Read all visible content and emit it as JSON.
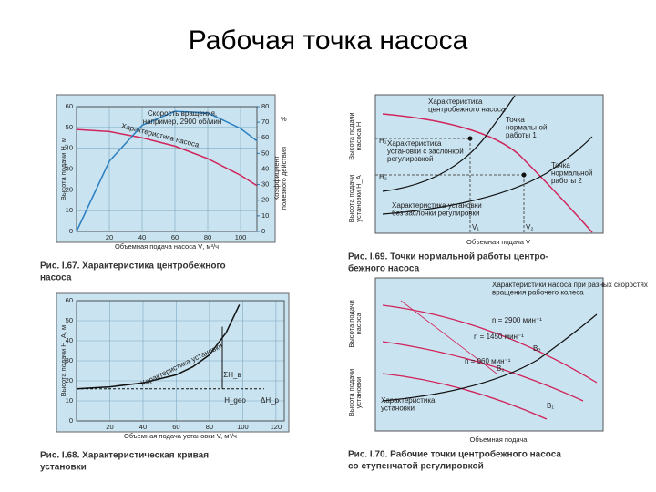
{
  "title": "Рабочая точка насоса",
  "chart_data": [
    {
      "type": "line",
      "x": [
        0,
        20,
        40,
        60,
        80,
        100,
        110
      ],
      "xlim": [
        0,
        110
      ],
      "xticks": [
        20,
        40,
        60,
        80,
        100
      ],
      "ylim": [
        0,
        60
      ],
      "yticks": [
        0,
        10,
        20,
        30,
        40,
        50,
        60
      ],
      "y2lim": [
        0,
        80
      ],
      "y2ticks": [
        0,
        10,
        20,
        30,
        40,
        50,
        60,
        70,
        80
      ],
      "grid": true,
      "xlabel": "Объемная подача насоса V̇, м³/ч",
      "ylabel": "Высота подачи H, м",
      "y2label": [
        "Коэффициент",
        "полезного действия"
      ],
      "y2unit": "%",
      "series": [
        {
          "name": "Характеристика насоса",
          "color": "#d0245a",
          "values": [
            49,
            48,
            45,
            41,
            35,
            27,
            22
          ]
        },
        {
          "color": "#2a7fc0",
          "axis": "y2",
          "values": [
            0,
            45,
            68,
            77,
            76,
            66,
            58
          ]
        }
      ],
      "annotations": [
        [
          "Скорость вращения,",
          "например, 2900 об/мин"
        ]
      ],
      "caption": [
        "Рис. I.67. Характеристика центробежного",
        "насоса"
      ]
    },
    {
      "type": "line",
      "x": [
        0,
        20,
        40,
        60,
        70,
        80,
        90,
        98
      ],
      "xlim": [
        0,
        125
      ],
      "xticks": [
        20,
        40,
        60,
        80,
        100,
        120
      ],
      "ylim": [
        0,
        60
      ],
      "yticks": [
        0,
        10,
        20,
        30,
        40,
        50,
        60
      ],
      "grid": true,
      "xlabel": "Объемная подача установки V, м³/ч",
      "ylabel": "Высота подачи H_A, м",
      "series": [
        {
          "name": "Характеристика установки",
          "color": "#111111",
          "values": [
            16,
            17,
            19,
            23,
            27,
            33,
            44,
            58
          ]
        }
      ],
      "annotations": [
        [
          "ΣH_в"
        ],
        [
          "H_geo"
        ],
        [
          "ΔH_p"
        ]
      ],
      "caption": [
        "Рис. I.68. Характеристическая кривая",
        "установки"
      ]
    }
  ],
  "diagrams": [
    {
      "xlabel": "Объемная подача V",
      "ylabel": [
        "Высота подачи",
        "насоса H"
      ],
      "y2label": [
        "Высота подачи",
        "установки H_A"
      ],
      "labels": [
        [
          "Характеристика",
          "центробежного насоса"
        ],
        [
          "Точка",
          "нормальной",
          "работы 1"
        ],
        [
          "Характеристика",
          "установки с заслонкой",
          "регулировкой"
        ],
        [
          "Точка",
          "нормальной",
          "работы 2"
        ],
        [
          "Характеристика установки",
          "без заслонки регулировки"
        ],
        [
          "H₁"
        ],
        [
          "H₂"
        ],
        [
          "V₁"
        ],
        [
          "V₂"
        ]
      ],
      "caption": [
        "Рис. I.69. Точки нормальной работы центро-",
        "бежного насоса"
      ]
    },
    {
      "xlabel": "Объемная подача",
      "ylabel": [
        "Высота подачи",
        "насоса"
      ],
      "y2label": [
        "Высота подачи",
        "установки"
      ],
      "labels": [
        [
          "Характеристики насоса при разных скоростях",
          "вращения рабочего колеса"
        ],
        [
          "n = 2900 мин⁻¹"
        ],
        [
          "n = 1450 мин⁻¹"
        ],
        [
          "n = 960 мин⁻¹"
        ],
        [
          "B₃"
        ],
        [
          "B₂"
        ],
        [
          "B₁"
        ],
        [
          "Характеристика",
          "установки"
        ]
      ],
      "caption": [
        "Рис. I.70. Рабочие точки центробежного насоса",
        "со ступенчатой регулировкой"
      ]
    }
  ]
}
